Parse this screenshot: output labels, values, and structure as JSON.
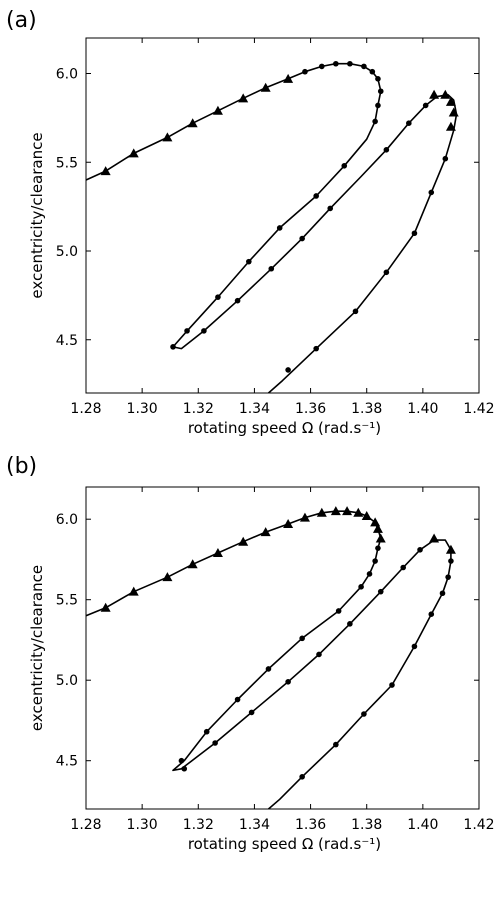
{
  "panels": [
    {
      "label": "(a)"
    },
    {
      "label": "(b)"
    }
  ],
  "chart_data": [
    {
      "type": "line",
      "panel": "(a)",
      "xlabel": "rotating speed Ω (rad.s⁻¹)",
      "ylabel": "excentricity/clearance",
      "xlim": [
        1.28,
        1.42
      ],
      "ylim": [
        4.2,
        6.2
      ],
      "xticks": [
        "1.28",
        "1.30",
        "1.32",
        "1.34",
        "1.36",
        "1.38",
        "1.40",
        "1.42"
      ],
      "yticks": [
        "4.5",
        "5.0",
        "5.5",
        "6.0"
      ],
      "grid": false,
      "curve": [
        [
          1.28,
          5.4
        ],
        [
          1.287,
          5.45
        ],
        [
          1.297,
          5.55
        ],
        [
          1.309,
          5.64
        ],
        [
          1.318,
          5.72
        ],
        [
          1.327,
          5.79
        ],
        [
          1.336,
          5.86
        ],
        [
          1.344,
          5.92
        ],
        [
          1.352,
          5.97
        ],
        [
          1.358,
          6.01
        ],
        [
          1.364,
          6.04
        ],
        [
          1.369,
          6.055
        ],
        [
          1.374,
          6.055
        ],
        [
          1.379,
          6.04
        ],
        [
          1.382,
          6.01
        ],
        [
          1.384,
          5.97
        ],
        [
          1.385,
          5.9
        ],
        [
          1.384,
          5.82
        ],
        [
          1.383,
          5.73
        ],
        [
          1.38,
          5.63
        ],
        [
          1.372,
          5.48
        ],
        [
          1.362,
          5.31
        ],
        [
          1.349,
          5.13
        ],
        [
          1.338,
          4.94
        ],
        [
          1.327,
          4.74
        ],
        [
          1.316,
          4.55
        ],
        [
          1.311,
          4.46
        ],
        [
          1.314,
          4.45
        ],
        [
          1.322,
          4.55
        ],
        [
          1.334,
          4.72
        ],
        [
          1.346,
          4.9
        ],
        [
          1.357,
          5.07
        ],
        [
          1.367,
          5.24
        ],
        [
          1.378,
          5.42
        ],
        [
          1.387,
          5.57
        ],
        [
          1.395,
          5.72
        ],
        [
          1.401,
          5.82
        ],
        [
          1.405,
          5.87
        ],
        [
          1.409,
          5.88
        ],
        [
          1.411,
          5.85
        ],
        [
          1.412,
          5.77
        ],
        [
          1.411,
          5.68
        ],
        [
          1.408,
          5.52
        ],
        [
          1.403,
          5.33
        ],
        [
          1.397,
          5.1
        ],
        [
          1.387,
          4.88
        ],
        [
          1.376,
          4.66
        ],
        [
          1.362,
          4.45
        ],
        [
          1.35,
          4.27
        ],
        [
          1.345,
          4.2
        ]
      ],
      "stable_triangles": [
        [
          1.287,
          5.45
        ],
        [
          1.297,
          5.55
        ],
        [
          1.309,
          5.64
        ],
        [
          1.318,
          5.72
        ],
        [
          1.327,
          5.79
        ],
        [
          1.336,
          5.86
        ],
        [
          1.344,
          5.92
        ],
        [
          1.352,
          5.97
        ],
        [
          1.404,
          5.88
        ],
        [
          1.408,
          5.88
        ],
        [
          1.41,
          5.84
        ],
        [
          1.411,
          5.78
        ],
        [
          1.41,
          5.7
        ]
      ],
      "unstable_circles": [
        [
          1.358,
          6.01
        ],
        [
          1.364,
          6.04
        ],
        [
          1.369,
          6.055
        ],
        [
          1.374,
          6.055
        ],
        [
          1.379,
          6.04
        ],
        [
          1.382,
          6.01
        ],
        [
          1.384,
          5.97
        ],
        [
          1.385,
          5.9
        ],
        [
          1.384,
          5.82
        ],
        [
          1.383,
          5.73
        ],
        [
          1.372,
          5.48
        ],
        [
          1.362,
          5.31
        ],
        [
          1.349,
          5.13
        ],
        [
          1.338,
          4.94
        ],
        [
          1.327,
          4.74
        ],
        [
          1.316,
          4.55
        ],
        [
          1.311,
          4.46
        ],
        [
          1.322,
          4.55
        ],
        [
          1.334,
          4.72
        ],
        [
          1.346,
          4.9
        ],
        [
          1.357,
          5.07
        ],
        [
          1.367,
          5.24
        ],
        [
          1.387,
          5.57
        ],
        [
          1.395,
          5.72
        ],
        [
          1.401,
          5.82
        ],
        [
          1.408,
          5.52
        ],
        [
          1.403,
          5.33
        ],
        [
          1.397,
          5.1
        ],
        [
          1.387,
          4.88
        ],
        [
          1.376,
          4.66
        ],
        [
          1.362,
          4.45
        ],
        [
          1.352,
          4.33
        ]
      ]
    },
    {
      "type": "line",
      "panel": "(b)",
      "xlabel": "rotating speed Ω (rad.s⁻¹)",
      "ylabel": "excentricity/clearance",
      "xlim": [
        1.28,
        1.42
      ],
      "ylim": [
        4.2,
        6.2
      ],
      "xticks": [
        "1.28",
        "1.30",
        "1.32",
        "1.34",
        "1.36",
        "1.38",
        "1.40",
        "1.42"
      ],
      "yticks": [
        "4.5",
        "5.0",
        "5.5",
        "6.0"
      ],
      "grid": false,
      "curve": [
        [
          1.28,
          5.4
        ],
        [
          1.287,
          5.45
        ],
        [
          1.297,
          5.55
        ],
        [
          1.309,
          5.64
        ],
        [
          1.318,
          5.72
        ],
        [
          1.327,
          5.79
        ],
        [
          1.336,
          5.86
        ],
        [
          1.344,
          5.92
        ],
        [
          1.352,
          5.97
        ],
        [
          1.358,
          6.01
        ],
        [
          1.364,
          6.04
        ],
        [
          1.369,
          6.05
        ],
        [
          1.373,
          6.05
        ],
        [
          1.377,
          6.04
        ],
        [
          1.38,
          6.02
        ],
        [
          1.383,
          5.98
        ],
        [
          1.384,
          5.94
        ],
        [
          1.385,
          5.88
        ],
        [
          1.384,
          5.82
        ],
        [
          1.383,
          5.74
        ],
        [
          1.381,
          5.66
        ],
        [
          1.378,
          5.58
        ],
        [
          1.37,
          5.43
        ],
        [
          1.357,
          5.26
        ],
        [
          1.345,
          5.07
        ],
        [
          1.334,
          4.88
        ],
        [
          1.323,
          4.68
        ],
        [
          1.315,
          4.5
        ],
        [
          1.311,
          4.44
        ],
        [
          1.314,
          4.45
        ],
        [
          1.326,
          4.61
        ],
        [
          1.339,
          4.8
        ],
        [
          1.352,
          4.99
        ],
        [
          1.363,
          5.16
        ],
        [
          1.374,
          5.35
        ],
        [
          1.385,
          5.55
        ],
        [
          1.393,
          5.7
        ],
        [
          1.399,
          5.81
        ],
        [
          1.404,
          5.87
        ],
        [
          1.408,
          5.87
        ],
        [
          1.41,
          5.81
        ],
        [
          1.41,
          5.74
        ],
        [
          1.409,
          5.64
        ],
        [
          1.407,
          5.54
        ],
        [
          1.403,
          5.41
        ],
        [
          1.397,
          5.21
        ],
        [
          1.389,
          4.97
        ],
        [
          1.379,
          4.79
        ],
        [
          1.369,
          4.6
        ],
        [
          1.357,
          4.4
        ],
        [
          1.349,
          4.26
        ],
        [
          1.345,
          4.2
        ]
      ],
      "stable_triangles": [
        [
          1.287,
          5.45
        ],
        [
          1.297,
          5.55
        ],
        [
          1.309,
          5.64
        ],
        [
          1.318,
          5.72
        ],
        [
          1.327,
          5.79
        ],
        [
          1.336,
          5.86
        ],
        [
          1.344,
          5.92
        ],
        [
          1.352,
          5.97
        ],
        [
          1.358,
          6.01
        ],
        [
          1.364,
          6.04
        ],
        [
          1.369,
          6.05
        ],
        [
          1.373,
          6.05
        ],
        [
          1.377,
          6.04
        ],
        [
          1.38,
          6.02
        ],
        [
          1.383,
          5.98
        ],
        [
          1.384,
          5.94
        ],
        [
          1.385,
          5.88
        ],
        [
          1.404,
          5.88
        ],
        [
          1.41,
          5.81
        ]
      ],
      "unstable_circles": [
        [
          1.384,
          5.82
        ],
        [
          1.383,
          5.74
        ],
        [
          1.381,
          5.66
        ],
        [
          1.378,
          5.58
        ],
        [
          1.37,
          5.43
        ],
        [
          1.357,
          5.26
        ],
        [
          1.345,
          5.07
        ],
        [
          1.334,
          4.88
        ],
        [
          1.323,
          4.68
        ],
        [
          1.314,
          4.5
        ],
        [
          1.315,
          4.45
        ],
        [
          1.326,
          4.61
        ],
        [
          1.339,
          4.8
        ],
        [
          1.352,
          4.99
        ],
        [
          1.363,
          5.16
        ],
        [
          1.374,
          5.35
        ],
        [
          1.385,
          5.55
        ],
        [
          1.393,
          5.7
        ],
        [
          1.399,
          5.81
        ],
        [
          1.41,
          5.74
        ],
        [
          1.409,
          5.64
        ],
        [
          1.407,
          5.54
        ],
        [
          1.403,
          5.41
        ],
        [
          1.397,
          5.21
        ],
        [
          1.389,
          4.97
        ],
        [
          1.379,
          4.79
        ],
        [
          1.369,
          4.6
        ],
        [
          1.357,
          4.4
        ]
      ]
    }
  ]
}
